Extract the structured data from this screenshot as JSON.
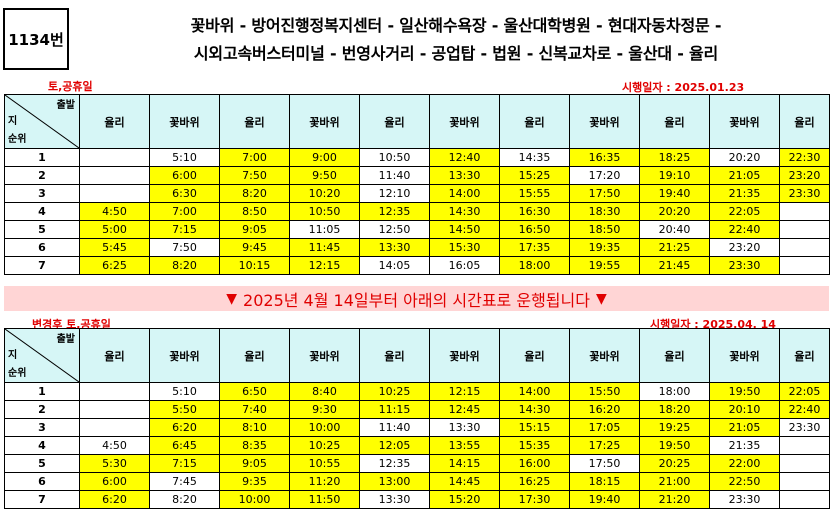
{
  "route_number": "1134번",
  "route_line1": "꽃바위 - 방어진행정복지센터 - 일산해수욕장 - 울산대학병원 - 현대자동차정문 -",
  "route_line2": "시외고속버스터미널 - 번영사거리 - 공업탑 - 법원 - 신복교차로 - 울산대 - 율리",
  "notice": {
    "text": "2025년 4월 14일부터 아래의 시간표로 운행됩니다",
    "marker": "▼"
  },
  "corner": {
    "top": "출발",
    "mid": "지",
    "bottom": "순위"
  },
  "headers": [
    "율리",
    "꽃바위",
    "율리",
    "꽃바위",
    "율리",
    "꽃바위",
    "율리",
    "꽃바위",
    "율리",
    "꽃바위",
    "율리"
  ],
  "highlight_color": "#ffff00",
  "header_color": "#d6f6f6",
  "tables": [
    {
      "day_label": "토,공휴일",
      "effective": "시행일자 : 2025.01.23",
      "rows": [
        {
          "n": "1",
          "cells": [
            {
              "t": "",
              "h": 0
            },
            {
              "t": "5:10",
              "h": 0
            },
            {
              "t": "7:00",
              "h": 1
            },
            {
              "t": "9:00",
              "h": 1
            },
            {
              "t": "10:50",
              "h": 0
            },
            {
              "t": "12:40",
              "h": 1
            },
            {
              "t": "14:35",
              "h": 0
            },
            {
              "t": "16:35",
              "h": 1
            },
            {
              "t": "18:25",
              "h": 1
            },
            {
              "t": "20:20",
              "h": 0
            },
            {
              "t": "22:30",
              "h": 1
            }
          ]
        },
        {
          "n": "2",
          "cells": [
            {
              "t": "",
              "h": 0
            },
            {
              "t": "6:00",
              "h": 1
            },
            {
              "t": "7:50",
              "h": 1
            },
            {
              "t": "9:50",
              "h": 1
            },
            {
              "t": "11:40",
              "h": 0
            },
            {
              "t": "13:30",
              "h": 1
            },
            {
              "t": "15:25",
              "h": 1
            },
            {
              "t": "17:20",
              "h": 0
            },
            {
              "t": "19:10",
              "h": 1
            },
            {
              "t": "21:05",
              "h": 1
            },
            {
              "t": "23:20",
              "h": 1
            }
          ]
        },
        {
          "n": "3",
          "cells": [
            {
              "t": "",
              "h": 0
            },
            {
              "t": "6:30",
              "h": 1
            },
            {
              "t": "8:20",
              "h": 1
            },
            {
              "t": "10:20",
              "h": 1
            },
            {
              "t": "12:10",
              "h": 0
            },
            {
              "t": "14:00",
              "h": 1
            },
            {
              "t": "15:55",
              "h": 1
            },
            {
              "t": "17:50",
              "h": 1
            },
            {
              "t": "19:40",
              "h": 1
            },
            {
              "t": "21:35",
              "h": 1
            },
            {
              "t": "23:30",
              "h": 1
            }
          ]
        },
        {
          "n": "4",
          "cells": [
            {
              "t": "4:50",
              "h": 1
            },
            {
              "t": "7:00",
              "h": 1
            },
            {
              "t": "8:50",
              "h": 1
            },
            {
              "t": "10:50",
              "h": 1
            },
            {
              "t": "12:35",
              "h": 1
            },
            {
              "t": "14:30",
              "h": 1
            },
            {
              "t": "16:30",
              "h": 1
            },
            {
              "t": "18:30",
              "h": 1
            },
            {
              "t": "20:20",
              "h": 1
            },
            {
              "t": "22:05",
              "h": 1
            },
            {
              "t": "",
              "h": 0
            }
          ]
        },
        {
          "n": "5",
          "cells": [
            {
              "t": "5:00",
              "h": 1
            },
            {
              "t": "7:15",
              "h": 1
            },
            {
              "t": "9:05",
              "h": 1
            },
            {
              "t": "11:05",
              "h": 0
            },
            {
              "t": "12:50",
              "h": 0
            },
            {
              "t": "14:50",
              "h": 1
            },
            {
              "t": "16:50",
              "h": 1
            },
            {
              "t": "18:50",
              "h": 1
            },
            {
              "t": "20:40",
              "h": 0
            },
            {
              "t": "22:40",
              "h": 1
            },
            {
              "t": "",
              "h": 0
            }
          ]
        },
        {
          "n": "6",
          "cells": [
            {
              "t": "5:45",
              "h": 1
            },
            {
              "t": "7:50",
              "h": 0
            },
            {
              "t": "9:45",
              "h": 1
            },
            {
              "t": "11:45",
              "h": 1
            },
            {
              "t": "13:30",
              "h": 1
            },
            {
              "t": "15:30",
              "h": 1
            },
            {
              "t": "17:35",
              "h": 1
            },
            {
              "t": "19:35",
              "h": 1
            },
            {
              "t": "21:25",
              "h": 1
            },
            {
              "t": "23:20",
              "h": 0
            },
            {
              "t": "",
              "h": 0
            }
          ]
        },
        {
          "n": "7",
          "cells": [
            {
              "t": "6:25",
              "h": 1
            },
            {
              "t": "8:20",
              "h": 1
            },
            {
              "t": "10:15",
              "h": 1
            },
            {
              "t": "12:15",
              "h": 1
            },
            {
              "t": "14:05",
              "h": 0
            },
            {
              "t": "16:05",
              "h": 0
            },
            {
              "t": "18:00",
              "h": 1
            },
            {
              "t": "19:55",
              "h": 1
            },
            {
              "t": "21:45",
              "h": 1
            },
            {
              "t": "23:30",
              "h": 1
            },
            {
              "t": "",
              "h": 0
            }
          ]
        }
      ]
    },
    {
      "day_label": "변경후 토,공휴일",
      "effective": "시행일자 : 2025.04. 14",
      "rows": [
        {
          "n": "1",
          "cells": [
            {
              "t": "",
              "h": 0
            },
            {
              "t": "5:10",
              "h": 0
            },
            {
              "t": "6:50",
              "h": 1
            },
            {
              "t": "8:40",
              "h": 1
            },
            {
              "t": "10:25",
              "h": 1
            },
            {
              "t": "12:15",
              "h": 1
            },
            {
              "t": "14:00",
              "h": 1
            },
            {
              "t": "15:50",
              "h": 1
            },
            {
              "t": "18:00",
              "h": 0
            },
            {
              "t": "19:50",
              "h": 1
            },
            {
              "t": "22:05",
              "h": 1
            }
          ]
        },
        {
          "n": "2",
          "cells": [
            {
              "t": "",
              "h": 0
            },
            {
              "t": "5:50",
              "h": 1
            },
            {
              "t": "7:40",
              "h": 1
            },
            {
              "t": "9:30",
              "h": 1
            },
            {
              "t": "11:15",
              "h": 1
            },
            {
              "t": "12:45",
              "h": 1
            },
            {
              "t": "14:30",
              "h": 1
            },
            {
              "t": "16:20",
              "h": 1
            },
            {
              "t": "18:20",
              "h": 1
            },
            {
              "t": "20:10",
              "h": 1
            },
            {
              "t": "22:40",
              "h": 1
            }
          ]
        },
        {
          "n": "3",
          "cells": [
            {
              "t": "",
              "h": 0
            },
            {
              "t": "6:20",
              "h": 1
            },
            {
              "t": "8:10",
              "h": 1
            },
            {
              "t": "10:00",
              "h": 1
            },
            {
              "t": "11:40",
              "h": 0
            },
            {
              "t": "13:30",
              "h": 0
            },
            {
              "t": "15:15",
              "h": 1
            },
            {
              "t": "17:05",
              "h": 1
            },
            {
              "t": "19:25",
              "h": 1
            },
            {
              "t": "21:05",
              "h": 1
            },
            {
              "t": "23:30",
              "h": 0
            }
          ]
        },
        {
          "n": "4",
          "cells": [
            {
              "t": "4:50",
              "h": 0
            },
            {
              "t": "6:45",
              "h": 1
            },
            {
              "t": "8:35",
              "h": 1
            },
            {
              "t": "10:25",
              "h": 1
            },
            {
              "t": "12:05",
              "h": 1
            },
            {
              "t": "13:55",
              "h": 1
            },
            {
              "t": "15:35",
              "h": 1
            },
            {
              "t": "17:25",
              "h": 1
            },
            {
              "t": "19:50",
              "h": 1
            },
            {
              "t": "21:35",
              "h": 0
            },
            {
              "t": "",
              "h": 0
            }
          ]
        },
        {
          "n": "5",
          "cells": [
            {
              "t": "5:30",
              "h": 1
            },
            {
              "t": "7:15",
              "h": 1
            },
            {
              "t": "9:05",
              "h": 1
            },
            {
              "t": "10:55",
              "h": 1
            },
            {
              "t": "12:35",
              "h": 0
            },
            {
              "t": "14:15",
              "h": 1
            },
            {
              "t": "16:00",
              "h": 1
            },
            {
              "t": "17:50",
              "h": 0
            },
            {
              "t": "20:25",
              "h": 1
            },
            {
              "t": "22:00",
              "h": 1
            },
            {
              "t": "",
              "h": 0
            }
          ]
        },
        {
          "n": "6",
          "cells": [
            {
              "t": "6:00",
              "h": 1
            },
            {
              "t": "7:45",
              "h": 0
            },
            {
              "t": "9:35",
              "h": 1
            },
            {
              "t": "11:20",
              "h": 1
            },
            {
              "t": "13:00",
              "h": 1
            },
            {
              "t": "14:45",
              "h": 1
            },
            {
              "t": "16:25",
              "h": 1
            },
            {
              "t": "18:15",
              "h": 1
            },
            {
              "t": "21:00",
              "h": 1
            },
            {
              "t": "22:50",
              "h": 1
            },
            {
              "t": "",
              "h": 0
            }
          ]
        },
        {
          "n": "7",
          "cells": [
            {
              "t": "6:20",
              "h": 1
            },
            {
              "t": "8:20",
              "h": 0
            },
            {
              "t": "10:00",
              "h": 1
            },
            {
              "t": "11:50",
              "h": 1
            },
            {
              "t": "13:30",
              "h": 0
            },
            {
              "t": "15:20",
              "h": 1
            },
            {
              "t": "17:30",
              "h": 1
            },
            {
              "t": "19:40",
              "h": 1
            },
            {
              "t": "21:20",
              "h": 1
            },
            {
              "t": "23:30",
              "h": 0
            },
            {
              "t": "",
              "h": 0
            }
          ]
        }
      ]
    }
  ]
}
